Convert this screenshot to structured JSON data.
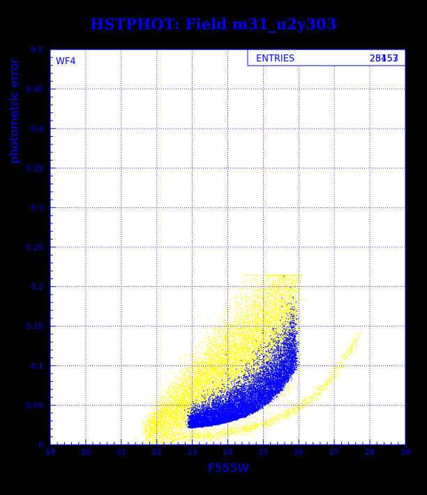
{
  "chart_data": {
    "type": "scatter",
    "title": "HSTPHOT: Field m31_u2y303",
    "xlabel": "F555W",
    "ylabel": "photometric error",
    "xlim": [
      19,
      29
    ],
    "ylim": [
      0,
      0.5
    ],
    "xticks": [
      "19",
      "20",
      "21",
      "22",
      "23",
      "24",
      "25",
      "26",
      "27",
      "28",
      "29"
    ],
    "yticks": [
      "0",
      "0.05",
      "0.1",
      "0.15",
      "0.2",
      "0.25",
      "0.3",
      "0.35",
      "0.4",
      "0.45",
      "0.5"
    ],
    "grid": true,
    "panel_label": "WF4",
    "stats_box": {
      "label": "ENTRIES",
      "values": [
        "28457",
        "25153"
      ]
    },
    "colors": {
      "background": "#000000",
      "plot_area": "#ffffff",
      "axes": "#0000ff",
      "series_a": "#ffff00",
      "series_b": "#0000ff"
    },
    "series": [
      {
        "color": "#ffff00",
        "description_points": [
          {
            "x": 21.8,
            "y": 0.01
          },
          {
            "x": 22.0,
            "y": 0.03
          },
          {
            "x": 22.2,
            "y": 0.05
          },
          {
            "x": 22.5,
            "y": 0.06
          },
          {
            "x": 22.8,
            "y": 0.09
          },
          {
            "x": 23.0,
            "y": 0.11
          },
          {
            "x": 23.3,
            "y": 0.13
          },
          {
            "x": 23.5,
            "y": 0.16
          },
          {
            "x": 23.8,
            "y": 0.19
          },
          {
            "x": 24.0,
            "y": 0.21
          },
          {
            "x": 24.5,
            "y": 0.215
          },
          {
            "x": 25.0,
            "y": 0.21
          },
          {
            "x": 25.5,
            "y": 0.2
          },
          {
            "x": 26.0,
            "y": 0.19
          }
        ],
        "sequence": [
          {
            "x": 22.5,
            "y": 0.005
          },
          {
            "x": 23.5,
            "y": 0.01
          },
          {
            "x": 24.5,
            "y": 0.015
          },
          {
            "x": 25.5,
            "y": 0.025
          },
          {
            "x": 26.5,
            "y": 0.045
          },
          {
            "x": 27.0,
            "y": 0.07
          },
          {
            "x": 27.3,
            "y": 0.1
          },
          {
            "x": 27.6,
            "y": 0.15
          },
          {
            "x": 27.7,
            "y": 0.19
          }
        ]
      },
      {
        "color": "#0000ff",
        "description_points": [
          {
            "x": 23.2,
            "y": 0.02
          },
          {
            "x": 23.5,
            "y": 0.025
          },
          {
            "x": 23.8,
            "y": 0.03
          },
          {
            "x": 24.0,
            "y": 0.035
          },
          {
            "x": 24.3,
            "y": 0.04
          },
          {
            "x": 24.6,
            "y": 0.05
          },
          {
            "x": 24.9,
            "y": 0.06
          },
          {
            "x": 25.2,
            "y": 0.08
          },
          {
            "x": 25.5,
            "y": 0.11
          },
          {
            "x": 25.8,
            "y": 0.14
          },
          {
            "x": 26.2,
            "y": 0.21
          }
        ]
      }
    ]
  }
}
